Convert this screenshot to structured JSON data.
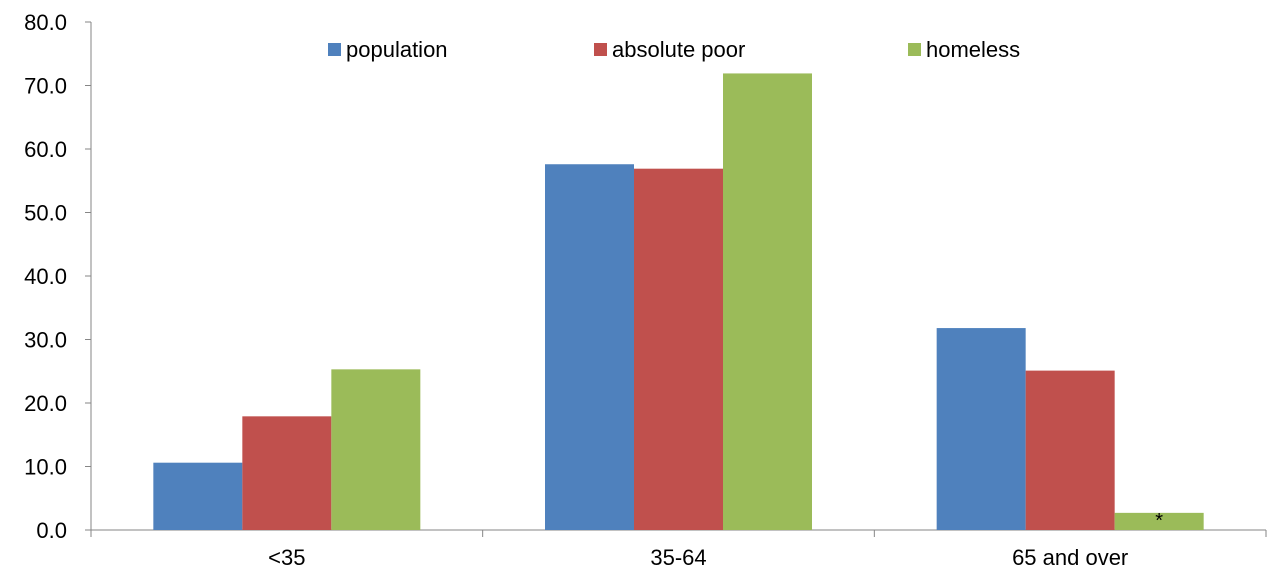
{
  "chart_data": {
    "type": "bar",
    "categories": [
      "<35",
      "35-64",
      "65 and over"
    ],
    "series": [
      {
        "name": "population",
        "values": [
          10.6,
          57.6,
          31.8
        ],
        "color": "#4F81BD"
      },
      {
        "name": "absolute poor",
        "values": [
          17.9,
          56.9,
          25.1
        ],
        "color": "#C0504D"
      },
      {
        "name": "homeless",
        "values": [
          25.3,
          71.9,
          2.7
        ],
        "color": "#9BBB59"
      }
    ],
    "ylim": [
      0,
      80
    ],
    "yticks": [
      "0.0",
      "10.0",
      "20.0",
      "30.0",
      "40.0",
      "50.0",
      "60.0",
      "70.0",
      "80.0"
    ],
    "legend_position": "top",
    "grid": false,
    "annotations": [
      {
        "text": "*",
        "category": "65 and over",
        "series": "homeless"
      }
    ]
  }
}
